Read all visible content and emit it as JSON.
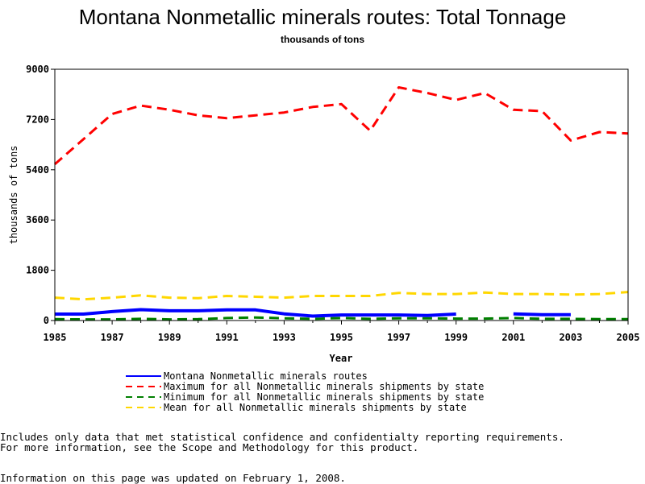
{
  "page": {
    "title": "Montana Nonmetallic minerals routes: Total Tonnage",
    "subtitle": "thousands of tons",
    "note_line1": "Includes only data that met statistical confidence and confidentialty reporting requirements.",
    "note_line2": "For more information, see the Scope and Methodology for this product.",
    "updated": "Information on this page was updated on February 1, 2008."
  },
  "chart_data": {
    "type": "line",
    "title": "Montana Nonmetallic minerals routes: Total Tonnage",
    "subtitle": "thousands of tons",
    "xlabel": "Year",
    "ylabel": "thousands of tons",
    "xlim": [
      1985,
      2005
    ],
    "ylim": [
      0,
      9000
    ],
    "x_ticks": [
      1985,
      1987,
      1989,
      1991,
      1993,
      1995,
      1997,
      1999,
      2001,
      2003,
      2005
    ],
    "y_ticks": [
      0,
      1800,
      3600,
      5400,
      7200,
      9000
    ],
    "grid": false,
    "legend_position": "bottom",
    "x": [
      1985,
      1986,
      1987,
      1988,
      1989,
      1990,
      1991,
      1992,
      1993,
      1994,
      1995,
      1996,
      1997,
      1998,
      1999,
      2000,
      2001,
      2002,
      2003,
      2004,
      2005
    ],
    "series": [
      {
        "name": "Montana Nonmetallic minerals routes",
        "color": "#0000ff",
        "style": "solid",
        "values": [
          230,
          230,
          320,
          390,
          350,
          350,
          380,
          380,
          240,
          160,
          200,
          200,
          200,
          180,
          230,
          null,
          240,
          210,
          210,
          null,
          null
        ]
      },
      {
        "name": "Maximum for all Nonmetallic minerals shipments by state",
        "color": "#ff0000",
        "style": "dashed",
        "values": [
          5600,
          6500,
          7400,
          7700,
          7550,
          7350,
          7250,
          7350,
          7450,
          7650,
          7750,
          6800,
          8350,
          8150,
          7900,
          8150,
          7550,
          7500,
          6450,
          6750,
          6700
        ]
      },
      {
        "name": "Minimum for all Nonmetallic minerals shipments by state",
        "color": "#008000",
        "style": "dashed",
        "values": [
          50,
          40,
          40,
          60,
          40,
          50,
          90,
          110,
          80,
          60,
          90,
          60,
          80,
          80,
          70,
          70,
          90,
          60,
          60,
          50,
          50
        ]
      },
      {
        "name": "Mean for all Nonmetallic minerals shipments by state",
        "color": "#ffd700",
        "style": "dashed",
        "values": [
          820,
          760,
          820,
          900,
          820,
          800,
          880,
          850,
          820,
          880,
          880,
          880,
          990,
          950,
          950,
          1000,
          950,
          950,
          930,
          950,
          1020
        ]
      }
    ]
  }
}
